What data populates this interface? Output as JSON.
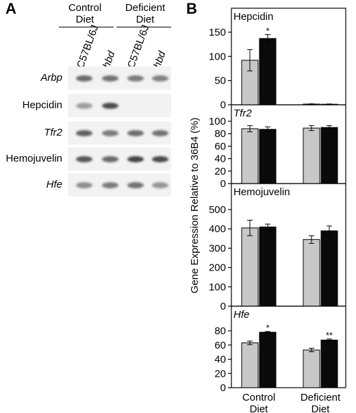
{
  "panel_a": {
    "letter": "A",
    "groups": [
      {
        "label_line1": "Control",
        "label_line2": "Diet"
      },
      {
        "label_line1": "Deficient",
        "label_line2": "Diet"
      }
    ],
    "strains": [
      {
        "label": "C57BL/6J",
        "italic": false
      },
      {
        "label": "hbd",
        "italic": true
      },
      {
        "label": "C57BL/6J",
        "italic": false
      },
      {
        "label": "hbd",
        "italic": true
      }
    ],
    "rows": [
      {
        "gene": "Arbp",
        "italic": true,
        "bands": [
          0.75,
          0.7,
          0.65,
          0.62
        ]
      },
      {
        "gene": "Hepcidin",
        "italic": false,
        "bands": [
          0.45,
          0.9,
          0,
          0
        ]
      },
      {
        "gene": "Tfr2",
        "italic": true,
        "bands": [
          0.8,
          0.65,
          0.72,
          0.7
        ]
      },
      {
        "gene": "Hemojuvelin",
        "italic": false,
        "bands": [
          0.85,
          0.75,
          0.95,
          0.92
        ]
      },
      {
        "gene": "Hfe",
        "italic": true,
        "bands": [
          0.55,
          0.65,
          0.7,
          0.5
        ]
      }
    ]
  },
  "panel_b": {
    "letter": "B",
    "ylabel": "Gene Expression Relative to 36B4 (%)"
  },
  "colors": {
    "control_bar": "#c8c8c8",
    "hbd_bar": "#0a0a0a",
    "band": "#3c3c3c"
  },
  "chart_data": [
    {
      "type": "bar",
      "title": "Hepcidin",
      "title_italic": false,
      "categories": [
        "Control Diet",
        "Deficient Diet"
      ],
      "series": [
        {
          "strain": "C57BL/6J",
          "values": [
            92,
            1.5
          ],
          "errors": [
            22,
            0.5
          ],
          "marks": [
            "",
            ""
          ]
        },
        {
          "strain": "hbd",
          "values": [
            137,
            1.2
          ],
          "errors": [
            8,
            0.5
          ],
          "marks": [
            "*",
            ""
          ]
        }
      ],
      "ylim": [
        0,
        150
      ],
      "yticks": [
        0,
        50,
        100,
        150
      ]
    },
    {
      "type": "bar",
      "title": "Tfr2",
      "title_italic": true,
      "categories": [
        "Control Diet",
        "Deficient Diet"
      ],
      "series": [
        {
          "strain": "C57BL/6J",
          "values": [
            88,
            89
          ],
          "errors": [
            5,
            4
          ],
          "marks": [
            "",
            ""
          ]
        },
        {
          "strain": "hbd",
          "values": [
            87,
            90
          ],
          "errors": [
            4,
            3
          ],
          "marks": [
            "",
            ""
          ]
        }
      ],
      "ylim": [
        0,
        100
      ],
      "yticks": [
        0,
        20,
        40,
        60,
        80,
        100
      ]
    },
    {
      "type": "bar",
      "title": "Hemojuvelin",
      "title_italic": false,
      "categories": [
        "Control Diet",
        "Deficient Diet"
      ],
      "series": [
        {
          "strain": "C57BL/6J",
          "values": [
            405,
            345
          ],
          "errors": [
            40,
            20
          ],
          "marks": [
            "",
            ""
          ]
        },
        {
          "strain": "hbd",
          "values": [
            410,
            390
          ],
          "errors": [
            15,
            25
          ],
          "marks": [
            "",
            ""
          ]
        }
      ],
      "ylim": [
        0,
        500
      ],
      "yticks": [
        0,
        100,
        200,
        300,
        400,
        500
      ]
    },
    {
      "type": "bar",
      "title": "Hfe",
      "title_italic": true,
      "categories": [
        "Control Diet",
        "Deficient Diet"
      ],
      "series": [
        {
          "strain": "C57BL/6J",
          "values": [
            63,
            53
          ],
          "errors": [
            2.5,
            2.5
          ],
          "marks": [
            "",
            ""
          ]
        },
        {
          "strain": "hbd",
          "values": [
            78,
            67
          ],
          "errors": [
            1,
            1.5
          ],
          "marks": [
            "*",
            "**"
          ]
        }
      ],
      "ylim": [
        0,
        80
      ],
      "yticks": [
        0,
        20,
        40,
        60,
        80
      ]
    }
  ],
  "x_categories": [
    {
      "line1": "Control",
      "line2": "Diet"
    },
    {
      "line1": "Deficient",
      "line2": "Diet"
    }
  ]
}
